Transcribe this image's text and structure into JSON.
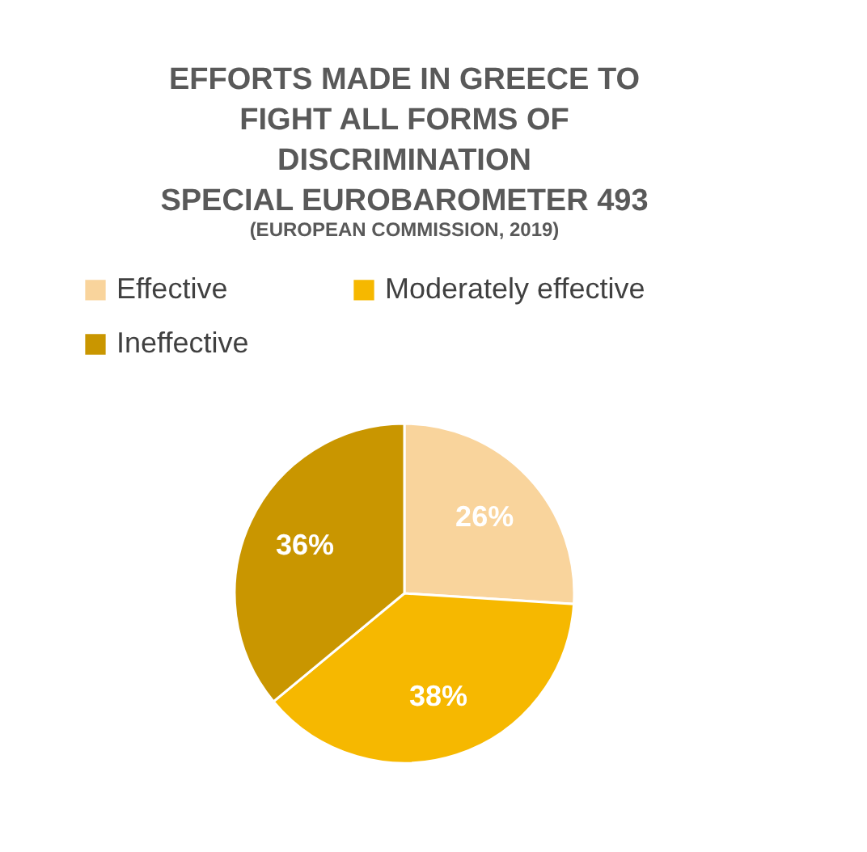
{
  "chart_data": {
    "type": "pie",
    "title": "EFFORTS MADE IN GREECE TO\nFIGHT ALL FORMS OF\nDISCRIMINATION\nSPECIAL EUROBAROMETER 493",
    "subtitle": "(EUROPEAN COMMISSION, 2019)",
    "categories": [
      "Effective",
      "Moderately effective",
      "Ineffective"
    ],
    "values": [
      26,
      38,
      36
    ],
    "colors": [
      "#f9d49c",
      "#f6b800",
      "#c99600"
    ],
    "value_labels": [
      "26%",
      "38%",
      "36%"
    ],
    "legend": "top"
  }
}
